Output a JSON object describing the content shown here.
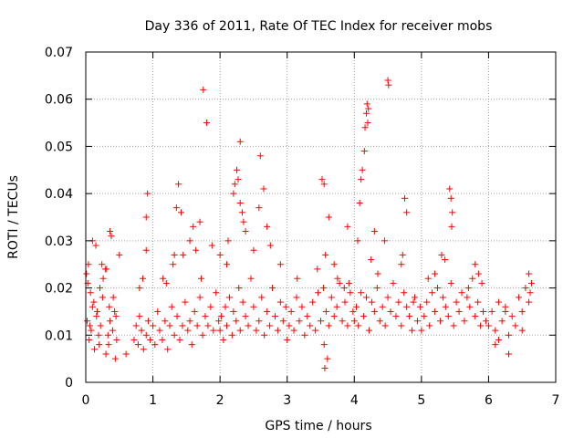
{
  "chart_data": {
    "type": "scatter",
    "title": "Day 336 of 2011, Rate Of TEC Index for receiver mobs",
    "xlabel": "GPS time / hours",
    "ylabel": "ROTI / TECUs",
    "xlim": [
      0,
      7
    ],
    "ylim": [
      0,
      0.07
    ],
    "xticks": [
      "0",
      "1",
      "2",
      "3",
      "4",
      "5",
      "6",
      "7"
    ],
    "yticks": [
      "0",
      "0.01",
      "0.02",
      "0.03",
      "0.04",
      "0.05",
      "0.06",
      "0.07"
    ],
    "grid": true,
    "marker": "+",
    "color": "#ff0000",
    "series": [
      {
        "name": "ROTI",
        "x": [
          0.02,
          0.05,
          0.08,
          0.1,
          0.13,
          0.16,
          0.2,
          0.22,
          0.25,
          0.3,
          0.33,
          0.36,
          0.4,
          0.43,
          0.46,
          0.03,
          0.07,
          0.12,
          0.17,
          0.21,
          0.26,
          0.31,
          0.35,
          0.41,
          0.45,
          0.1,
          0.15,
          0.36,
          0.38,
          0.01,
          0.04,
          0.24,
          0.29,
          0.06,
          0.19,
          0.34,
          0.44,
          0.72,
          0.75,
          0.78,
          0.8,
          0.83,
          0.86,
          0.9,
          0.93,
          0.96,
          1.0,
          1.03,
          1.07,
          1.1,
          1.14,
          1.18,
          1.22,
          1.25,
          1.28,
          1.32,
          1.36,
          1.4,
          1.44,
          1.48,
          1.52,
          1.55,
          1.58,
          1.62,
          1.66,
          1.7,
          1.74,
          1.78,
          1.82,
          1.86,
          1.9,
          1.94,
          1.98,
          0.8,
          0.85,
          0.9,
          0.9,
          0.92,
          1.2,
          1.3,
          1.32,
          1.35,
          1.38,
          1.42,
          1.55,
          1.64,
          1.7,
          1.72,
          1.75,
          1.8,
          2.0,
          2.02,
          2.05,
          2.08,
          2.1,
          2.14,
          2.18,
          2.2,
          2.24,
          2.28,
          2.3,
          2.34,
          2.38,
          2.42,
          2.46,
          2.5,
          2.54,
          2.58,
          2.62,
          2.66,
          2.7,
          2.74,
          2.78,
          2.82,
          2.86,
          2.9,
          2.94,
          2.98,
          2.2,
          2.22,
          2.25,
          2.27,
          2.3,
          2.33,
          2.35,
          2.38,
          2.58,
          2.6,
          2.65,
          2.5,
          2.7,
          2.75,
          2.3,
          2.1,
          2.0,
          3.0,
          3.03,
          3.06,
          3.1,
          3.14,
          3.18,
          3.22,
          3.26,
          3.3,
          3.34,
          3.38,
          3.42,
          3.46,
          3.5,
          3.54,
          3.58,
          3.62,
          3.66,
          3.7,
          3.74,
          3.78,
          3.82,
          3.86,
          3.9,
          3.94,
          3.98,
          3.52,
          3.55,
          3.56,
          3.6,
          3.62,
          3.7,
          3.75,
          3.85,
          3.9,
          3.55,
          3.57,
          4.0,
          4.03,
          4.06,
          4.1,
          4.14,
          4.18,
          4.22,
          4.26,
          4.3,
          4.34,
          4.38,
          4.42,
          4.46,
          4.5,
          4.54,
          4.58,
          4.62,
          4.66,
          4.7,
          4.74,
          4.78,
          4.82,
          4.86,
          4.9,
          4.94,
          4.98,
          4.18,
          4.19,
          4.2,
          4.21,
          4.16,
          4.15,
          4.12,
          4.1,
          4.08,
          4.5,
          4.51,
          4.75,
          4.78,
          4.05,
          4.3,
          4.45,
          4.7,
          4.72,
          4.25,
          5.0,
          5.04,
          5.08,
          5.12,
          5.16,
          5.2,
          5.24,
          5.28,
          5.32,
          5.36,
          5.4,
          5.44,
          5.48,
          5.52,
          5.56,
          5.6,
          5.64,
          5.68,
          5.72,
          5.76,
          5.8,
          5.84,
          5.88,
          5.92,
          5.96,
          5.42,
          5.44,
          5.46,
          5.45,
          5.3,
          5.35,
          5.8,
          5.85,
          5.9,
          5.2,
          6.0,
          6.05,
          6.1,
          6.15,
          6.2,
          6.25,
          6.3,
          6.35,
          6.4,
          6.45,
          6.5,
          6.55,
          6.6,
          6.62,
          6.64,
          6.1,
          6.15,
          6.5,
          6.6,
          6.3,
          0.5,
          0.6,
          1.15,
          1.45,
          1.6,
          1.88,
          2.12,
          2.9,
          3.15,
          3.45,
          3.92,
          4.35,
          4.88,
          5.1,
          5.7,
          6.25
        ],
        "y": [
          0.013,
          0.009,
          0.011,
          0.016,
          0.007,
          0.014,
          0.008,
          0.012,
          0.018,
          0.006,
          0.01,
          0.013,
          0.011,
          0.015,
          0.009,
          0.021,
          0.019,
          0.017,
          0.015,
          0.02,
          0.022,
          0.024,
          0.016,
          0.018,
          0.014,
          0.03,
          0.029,
          0.032,
          0.031,
          0.023,
          0.025,
          0.025,
          0.024,
          0.012,
          0.01,
          0.008,
          0.005,
          0.009,
          0.012,
          0.008,
          0.014,
          0.011,
          0.007,
          0.01,
          0.013,
          0.009,
          0.012,
          0.008,
          0.015,
          0.011,
          0.009,
          0.013,
          0.007,
          0.012,
          0.016,
          0.01,
          0.014,
          0.009,
          0.012,
          0.017,
          0.011,
          0.013,
          0.008,
          0.015,
          0.012,
          0.018,
          0.01,
          0.014,
          0.012,
          0.016,
          0.011,
          0.019,
          0.013,
          0.02,
          0.022,
          0.028,
          0.035,
          0.04,
          0.021,
          0.025,
          0.027,
          0.037,
          0.042,
          0.036,
          0.03,
          0.028,
          0.034,
          0.022,
          0.062,
          0.055,
          0.011,
          0.014,
          0.009,
          0.016,
          0.012,
          0.018,
          0.01,
          0.015,
          0.013,
          0.02,
          0.011,
          0.017,
          0.014,
          0.012,
          0.022,
          0.016,
          0.011,
          0.013,
          0.018,
          0.01,
          0.015,
          0.012,
          0.02,
          0.014,
          0.011,
          0.017,
          0.013,
          0.016,
          0.04,
          0.042,
          0.045,
          0.043,
          0.038,
          0.036,
          0.034,
          0.032,
          0.037,
          0.048,
          0.041,
          0.028,
          0.033,
          0.029,
          0.051,
          0.025,
          0.027,
          0.009,
          0.012,
          0.015,
          0.011,
          0.018,
          0.013,
          0.016,
          0.01,
          0.014,
          0.012,
          0.017,
          0.011,
          0.019,
          0.013,
          0.02,
          0.015,
          0.012,
          0.018,
          0.014,
          0.016,
          0.021,
          0.013,
          0.017,
          0.012,
          0.019,
          0.015,
          0.043,
          0.042,
          0.003,
          0.005,
          0.035,
          0.025,
          0.022,
          0.02,
          0.033,
          0.008,
          0.027,
          0.013,
          0.016,
          0.012,
          0.019,
          0.014,
          0.018,
          0.011,
          0.017,
          0.015,
          0.02,
          0.013,
          0.016,
          0.012,
          0.018,
          0.015,
          0.021,
          0.014,
          0.017,
          0.012,
          0.019,
          0.016,
          0.014,
          0.011,
          0.018,
          0.013,
          0.016,
          0.057,
          0.059,
          0.055,
          0.058,
          0.054,
          0.049,
          0.045,
          0.043,
          0.038,
          0.064,
          0.063,
          0.039,
          0.036,
          0.03,
          0.032,
          0.03,
          0.025,
          0.027,
          0.026,
          0.011,
          0.014,
          0.017,
          0.012,
          0.019,
          0.015,
          0.02,
          0.013,
          0.018,
          0.016,
          0.014,
          0.021,
          0.012,
          0.017,
          0.015,
          0.019,
          0.013,
          0.018,
          0.016,
          0.022,
          0.014,
          0.017,
          0.012,
          0.015,
          0.013,
          0.041,
          0.039,
          0.036,
          0.033,
          0.027,
          0.026,
          0.025,
          0.023,
          0.021,
          0.023,
          0.012,
          0.015,
          0.011,
          0.017,
          0.013,
          0.016,
          0.01,
          0.014,
          0.012,
          0.018,
          0.015,
          0.02,
          0.023,
          0.019,
          0.021,
          0.008,
          0.009,
          0.011,
          0.017,
          0.006,
          0.027,
          0.006,
          0.022,
          0.027,
          0.033,
          0.029,
          0.03,
          0.025,
          0.022,
          0.024,
          0.021,
          0.023,
          0.017,
          0.022,
          0.02,
          0.015
        ]
      }
    ]
  }
}
